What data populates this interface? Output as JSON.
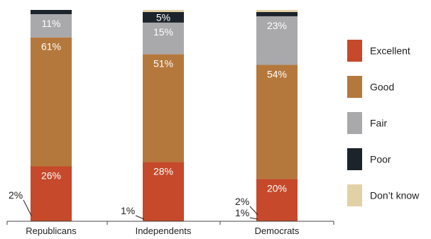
{
  "chart_data": {
    "type": "bar",
    "stacked": true,
    "normalized": true,
    "categories": [
      "Republicans",
      "Independents",
      "Democrats"
    ],
    "series": [
      {
        "name": "Excellent",
        "values": [
          26,
          28,
          20
        ],
        "color": "#c5492a"
      },
      {
        "name": "Good",
        "values": [
          61,
          51,
          54
        ],
        "color": "#b5783c"
      },
      {
        "name": "Fair",
        "values": [
          11,
          15,
          23
        ],
        "color": "#a9a9ab"
      },
      {
        "name": "Poor",
        "values": [
          2,
          5,
          2
        ],
        "color": "#1c232b"
      },
      {
        "name": "Don’t know",
        "values": [
          0,
          1,
          1
        ],
        "color": "#e3d1a6"
      }
    ],
    "data_labels": [
      [
        "26%",
        "61%",
        "11%",
        "2%",
        ""
      ],
      [
        "28%",
        "51%",
        "15%",
        "5%",
        "1%"
      ],
      [
        "20%",
        "54%",
        "23%",
        "2%",
        "1%"
      ]
    ],
    "legend_position": "right",
    "grid": false
  }
}
